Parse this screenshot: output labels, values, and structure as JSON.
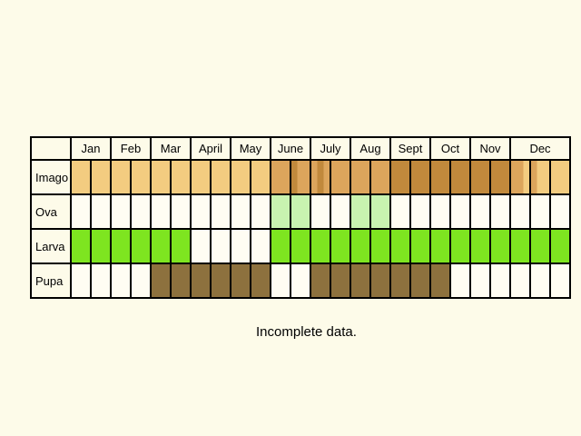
{
  "months": [
    "Jan",
    "Feb",
    "Mar",
    "April",
    "May",
    "June",
    "July",
    "Aug",
    "Sept",
    "Oct",
    "Nov",
    "Dec"
  ],
  "colors": {
    "imago_light": "#f3cc80",
    "imago_mid": "#dca55c",
    "imago_dark": "#c1893c",
    "ova_light": "#c8f3b0",
    "larva": "#7ee520",
    "pupa": "#8d713e",
    "empty": "#fffdf3"
  },
  "stages": [
    {
      "label": "Imago",
      "cells": [
        "imago_light",
        "imago_light",
        "imago_light",
        "imago_light",
        "imago_light",
        "imago_light",
        "imago_light",
        "imago_light",
        "imago_light",
        "imago_light",
        "imago_mid",
        "imago_mid",
        "imago_dark",
        "imago_mid",
        "imago_mid",
        "imago_mid",
        "imago_dark",
        "imago_dark",
        "imago_dark",
        "imago_dark",
        "imago_dark",
        "imago_dark",
        "imago_mid",
        "imago_mid",
        "imago_light"
      ],
      "mixed": {
        "11": [
          "imago_dark",
          "imago_mid",
          "imago_mid"
        ],
        "12": [
          "imago_mid",
          "imago_dark",
          "imago_mid"
        ],
        "22": [
          "imago_mid",
          "imago_mid",
          "imago_light"
        ],
        "23": [
          "imago_mid",
          "imago_light",
          "imago_light"
        ]
      }
    },
    {
      "label": "Ova",
      "cells": [
        "empty",
        "empty",
        "empty",
        "empty",
        "empty",
        "empty",
        "empty",
        "empty",
        "empty",
        "empty",
        "ova_light",
        "ova_light",
        "empty",
        "empty",
        "ova_light",
        "ova_light",
        "empty",
        "empty",
        "empty",
        "empty",
        "empty",
        "empty",
        "empty",
        "empty",
        "empty"
      ]
    },
    {
      "label": "Larva",
      "cells": [
        "larva",
        "larva",
        "larva",
        "larva",
        "larva",
        "larva",
        "empty",
        "empty",
        "empty",
        "empty",
        "larva",
        "larva",
        "larva",
        "larva",
        "larva",
        "larva",
        "larva",
        "larva",
        "larva",
        "larva",
        "larva",
        "larva",
        "larva",
        "larva",
        "larva"
      ]
    },
    {
      "label": "Pupa",
      "cells": [
        "empty",
        "empty",
        "empty",
        "empty",
        "pupa",
        "pupa",
        "pupa",
        "pupa",
        "pupa",
        "pupa",
        "empty",
        "empty",
        "pupa",
        "pupa",
        "pupa",
        "pupa",
        "pupa",
        "pupa",
        "pupa",
        "empty",
        "empty",
        "empty",
        "empty",
        "empty",
        "empty"
      ]
    }
  ],
  "note": "Incomplete data."
}
